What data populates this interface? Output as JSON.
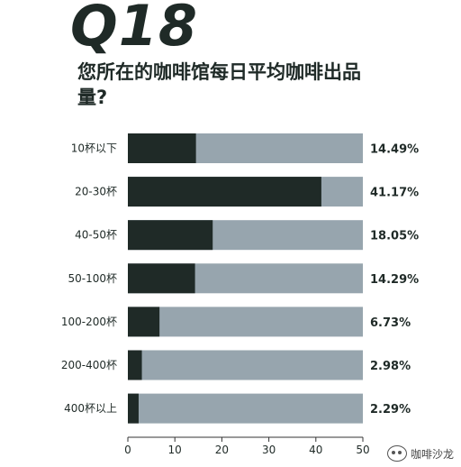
{
  "header": {
    "question_number": "Q18",
    "title": "您所在的咖啡馆每日平均咖啡出品量?"
  },
  "watermark": {
    "text": "咖啡沙龙"
  },
  "colors": {
    "fill": "#1f2a27",
    "track": "#97a5ae",
    "text": "#1f2a27"
  },
  "chart_data": {
    "type": "bar",
    "orientation": "horizontal",
    "stacked_to_total": true,
    "categories": [
      "10杯以下",
      "20-30杯",
      "40-50杯",
      "50-100杯",
      "100-200杯",
      "200-400杯",
      "400杯以上"
    ],
    "values": [
      14.49,
      41.17,
      18.05,
      14.29,
      6.73,
      2.98,
      2.29
    ],
    "value_labels": [
      "14.49%",
      "41.17%",
      "18.05%",
      "14.29%",
      "6.73%",
      "2.98%",
      "2.29%"
    ],
    "xlim": [
      0,
      50
    ],
    "xticks": [
      0,
      10,
      20,
      30,
      40,
      50
    ],
    "title": "您所在的咖啡馆每日平均咖啡出品量?",
    "xlabel": "",
    "ylabel": "",
    "grid": false
  }
}
